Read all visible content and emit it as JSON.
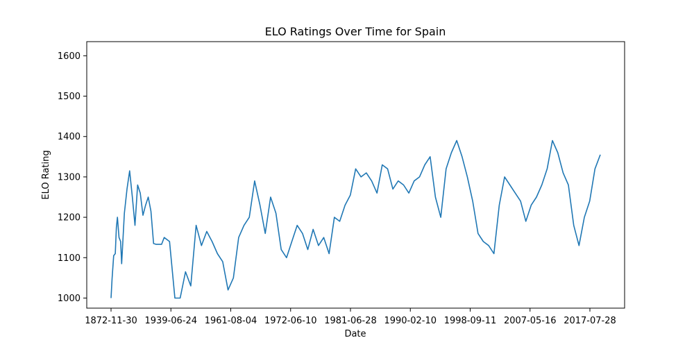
{
  "chart_data": {
    "type": "line",
    "title": "ELO Ratings Over Time for Spain",
    "xlabel": "Date",
    "ylabel": "ELO Rating",
    "ylim": [
      975,
      1635
    ],
    "y_ticks": [
      1000,
      1100,
      1200,
      1300,
      1400,
      1500,
      1600
    ],
    "x_ticks": [
      "1872-11-30",
      "1939-06-24",
      "1961-08-04",
      "1972-06-10",
      "1981-06-28",
      "1990-02-10",
      "1998-09-11",
      "2007-05-16",
      "2017-07-28"
    ],
    "grid": false,
    "line_color": "#1f77b4",
    "series": [
      {
        "x": [
          0.0,
          0.02,
          0.05,
          0.08,
          0.1,
          0.12,
          0.15,
          0.18,
          0.2,
          0.25,
          0.3,
          0.35,
          0.4,
          0.45,
          0.5,
          0.55,
          0.6,
          0.65,
          0.7,
          0.75,
          0.8,
          0.85,
          0.9,
          0.95,
          1.0,
          1.1,
          1.2,
          1.3,
          1.4,
          1.5,
          1.6,
          1.7,
          1.8,
          1.9,
          2.0,
          2.1,
          2.2,
          2.3,
          2.4,
          2.5,
          2.6,
          2.7,
          2.8,
          2.9,
          3.0,
          3.1,
          3.2,
          3.3,
          3.4,
          3.5,
          3.6,
          3.7,
          3.8,
          3.9,
          4.0,
          4.1,
          4.2,
          4.3,
          4.4,
          4.5,
          4.6,
          4.7,
          4.8,
          4.9,
          5.0,
          5.1,
          5.2,
          5.3,
          5.4,
          5.5,
          5.6,
          5.7,
          5.8,
          5.9,
          6.0,
          6.1,
          6.2,
          6.3,
          6.4,
          6.5,
          6.6,
          6.7,
          6.8,
          6.9,
          7.0,
          7.1,
          7.2,
          7.3,
          7.4,
          7.5,
          7.6,
          7.7,
          7.8,
          7.9,
          8.0,
          8.1,
          8.2,
          8.3,
          8.4,
          8.5,
          8.6,
          8.7,
          8.8,
          8.9,
          9.0,
          9.1,
          9.2
        ],
        "values": [
          1000,
          1048,
          1105,
          1110,
          1175,
          1200,
          1150,
          1140,
          1085,
          1210,
          1270,
          1315,
          1250,
          1180,
          1280,
          1260,
          1205,
          1230,
          1250,
          1215,
          1135,
          1133,
          1133,
          1133,
          1150,
          1140,
          1000,
          1000,
          1065,
          1030,
          1180,
          1130,
          1165,
          1140,
          1110,
          1090,
          1020,
          1050,
          1150,
          1180,
          1200,
          1290,
          1230,
          1160,
          1250,
          1210,
          1120,
          1100,
          1140,
          1180,
          1160,
          1120,
          1170,
          1130,
          1150,
          1110,
          1200,
          1190,
          1230,
          1255,
          1320,
          1300,
          1310,
          1290,
          1260,
          1330,
          1320,
          1270,
          1290,
          1280,
          1260,
          1290,
          1300,
          1330,
          1350,
          1250,
          1200,
          1320,
          1360,
          1390,
          1350,
          1300,
          1240,
          1160,
          1140,
          1130,
          1110,
          1230,
          1300,
          1280,
          1260,
          1240,
          1190,
          1230,
          1250,
          1280,
          1320,
          1390,
          1360,
          1310,
          1280,
          1180,
          1130,
          1200,
          1240,
          1320,
          1355
        ]
      }
    ]
  }
}
